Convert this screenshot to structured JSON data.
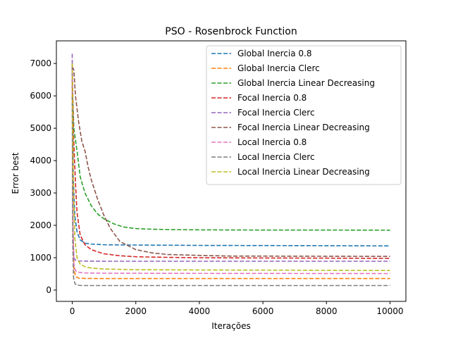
{
  "chart_data": {
    "type": "line",
    "title": "PSO - Rosenbrock Function",
    "xlabel": "Iterações",
    "ylabel": "Error best",
    "xlim": [
      -500,
      10500
    ],
    "ylim": [
      -350,
      7700
    ],
    "xticks": [
      0,
      2000,
      4000,
      6000,
      8000,
      10000
    ],
    "yticks": [
      0,
      1000,
      2000,
      3000,
      4000,
      5000,
      6000,
      7000
    ],
    "grid": false,
    "legend_position": "top-right",
    "line_style": "dashed",
    "series": [
      {
        "name": "Global Inercia 0.8",
        "color": "#1f77b4",
        "x": [
          0,
          30,
          80,
          150,
          250,
          400,
          600,
          1000,
          2000,
          4000,
          6000,
          8000,
          10000
        ],
        "y": [
          6900,
          3500,
          2300,
          1800,
          1550,
          1450,
          1420,
          1400,
          1390,
          1380,
          1375,
          1370,
          1365
        ]
      },
      {
        "name": "Global Inercia Clerc",
        "color": "#ff7f0e",
        "x": [
          0,
          20,
          50,
          100,
          200,
          400,
          1000,
          3000,
          10000
        ],
        "y": [
          6500,
          2000,
          700,
          420,
          370,
          360,
          355,
          355,
          355
        ]
      },
      {
        "name": "Global Inercia Linear Decreasing",
        "color": "#2ca02c",
        "x": [
          0,
          50,
          150,
          250,
          400,
          600,
          800,
          1000,
          1300,
          1600,
          2000,
          2500,
          3000,
          4000,
          6000,
          8000,
          10000
        ],
        "y": [
          6300,
          5000,
          4300,
          3500,
          3000,
          2600,
          2350,
          2200,
          2050,
          1950,
          1900,
          1880,
          1870,
          1860,
          1855,
          1855,
          1850
        ]
      },
      {
        "name": "Focal Inercia 0.8",
        "color": "#d62728",
        "x": [
          0,
          40,
          100,
          150,
          250,
          400,
          600,
          800,
          1000,
          1500,
          2000,
          3000,
          4000,
          6000,
          8000,
          10000
        ],
        "y": [
          7000,
          4800,
          3300,
          2400,
          1700,
          1400,
          1250,
          1180,
          1120,
          1060,
          1030,
          1010,
          1000,
          990,
          985,
          980
        ]
      },
      {
        "name": "Focal Inercia Clerc",
        "color": "#9467bd",
        "x": [
          0,
          20,
          50,
          100,
          200,
          400,
          1000,
          3000,
          10000
        ],
        "y": [
          7300,
          2000,
          1000,
          920,
          900,
          895,
          890,
          890,
          890
        ]
      },
      {
        "name": "Focal Inercia Linear Decreasing",
        "color": "#8c564b",
        "x": [
          0,
          50,
          100,
          200,
          300,
          400,
          500,
          600,
          800,
          1000,
          1200,
          1500,
          2000,
          2500,
          3000,
          4000,
          5000,
          6000,
          8000,
          10000
        ],
        "y": [
          6900,
          6800,
          6000,
          5200,
          4600,
          4300,
          3800,
          3400,
          2800,
          2300,
          1900,
          1500,
          1250,
          1150,
          1100,
          1070,
          1050,
          1050,
          1045,
          1040
        ]
      },
      {
        "name": "Local Inercia 0.8",
        "color": "#e377c2",
        "x": [
          0,
          20,
          50,
          100,
          200,
          400,
          1000,
          3000,
          10000
        ],
        "y": [
          6600,
          2000,
          800,
          600,
          550,
          530,
          520,
          515,
          510
        ]
      },
      {
        "name": "Local Inercia Clerc",
        "color": "#7f7f7f",
        "x": [
          0,
          15,
          40,
          80,
          150,
          300,
          1000,
          10000
        ],
        "y": [
          6000,
          1500,
          400,
          200,
          150,
          140,
          140,
          140
        ]
      },
      {
        "name": "Local Inercia Linear Decreasing",
        "color": "#bcbd22",
        "x": [
          0,
          30,
          80,
          150,
          250,
          400,
          600,
          1000,
          2000,
          4000,
          6000,
          8000,
          10000
        ],
        "y": [
          7000,
          3500,
          1600,
          1000,
          800,
          720,
          680,
          650,
          630,
          620,
          615,
          610,
          605
        ]
      }
    ]
  }
}
